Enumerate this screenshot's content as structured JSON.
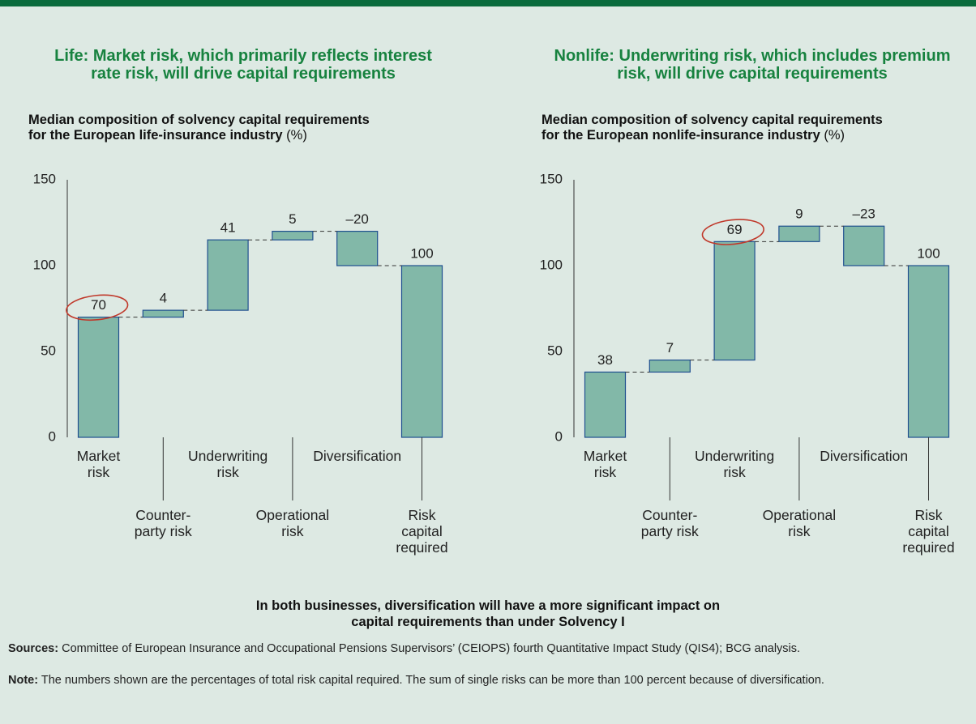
{
  "chart_data": [
    {
      "type": "waterfall",
      "title": "Life: Market risk, which primarily reflects interest rate risk, will drive capital requirements",
      "subtitle": "Median composition of solvency capital requirements for the European life-insurance industry",
      "unit": "(%)",
      "categories": [
        "Market\nrisk",
        "Counter-\nparty risk",
        "Underwriting\nrisk",
        "Operational\nrisk",
        "Diversification",
        "Risk\ncapital\nrequired"
      ],
      "values": [
        70,
        4,
        41,
        5,
        -20,
        100
      ],
      "value_labels": [
        "70",
        "4",
        "41",
        "5",
        "–20",
        "100"
      ],
      "totals": [
        false,
        false,
        false,
        false,
        false,
        true
      ],
      "highlight": 0,
      "color": "#82b8a8",
      "edge_color": "#1f4f8f",
      "highlight_color": "#c0392b",
      "ylim": [
        0,
        150
      ],
      "yticks": [
        0,
        50,
        100,
        150
      ]
    },
    {
      "type": "waterfall",
      "title": "Nonlife: Underwriting risk, which includes premium risk, will drive capital requirements",
      "subtitle": "Median composition of solvency capital requirements for the European nonlife-insurance industry",
      "unit": "(%)",
      "categories": [
        "Market\nrisk",
        "Counter-\nparty risk",
        "Underwriting\nrisk",
        "Operational\nrisk",
        "Diversification",
        "Risk\ncapital\nrequired"
      ],
      "values": [
        38,
        7,
        69,
        9,
        -23,
        100
      ],
      "value_labels": [
        "38",
        "7",
        "69",
        "9",
        "–23",
        "100"
      ],
      "totals": [
        false,
        false,
        false,
        false,
        false,
        true
      ],
      "highlight": 2,
      "color": "#82b8a8",
      "edge_color": "#1f4f8f",
      "highlight_color": "#c0392b",
      "ylim": [
        0,
        150
      ],
      "yticks": [
        0,
        50,
        100,
        150
      ]
    }
  ],
  "conclusion": "In both businesses, diversification will have a more significant impact on capital requirements than under Solvency I",
  "sources_label": "Sources:",
  "sources": "Committee of European Insurance and Occupational Pensions Supervisors’ (CEIOPS) fourth Quantitative Impact Study (QIS4); BCG analysis.",
  "note_label": "Note:",
  "note": "The numbers shown are the percentages of total risk capital required. The sum of single risks can be more than 100 percent because of diversification."
}
